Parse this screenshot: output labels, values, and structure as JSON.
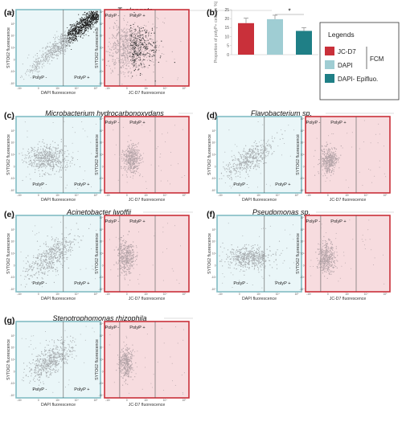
{
  "figure": {
    "colors": {
      "dapi_frame": "#82bcc4",
      "dapi_fill": "#eaf6f8",
      "jc_frame": "#c9303a",
      "jc_fill": "#f7dcdf",
      "dot": "#a8adb0",
      "dot_dense": "#1a1a1a",
      "dot_jc": "#b4a4a8"
    },
    "gates": {
      "left": "PolyP -",
      "right": "PolyP +"
    },
    "axes": {
      "y": "SYTO62 fluorescence",
      "x_dapi": "DAPI fluorescence",
      "x_jc": "JC-D7 fluorescence"
    },
    "ticks": {
      "y": [
        "10⁶",
        "10⁵",
        "10⁴",
        "10³",
        "0",
        "-10³",
        "-10⁴"
      ],
      "x": [
        "-10³",
        "0",
        "10³",
        "10⁴",
        "10⁵"
      ]
    },
    "panels": [
      {
        "letter": "(a)",
        "title": "T. elongata"
      },
      {
        "letter": "(c)",
        "title": "Microbacterium hydrocarbonoxydans"
      },
      {
        "letter": "(d)",
        "title": "Flavobacterium sp."
      },
      {
        "letter": "(e)",
        "title": "Acinetobacter lwoffii"
      },
      {
        "letter": "(f)",
        "title": "Pseudomonas sp."
      },
      {
        "letter": "(g)",
        "title": "Stenotrophomonas rhizophila"
      }
    ]
  },
  "chart_data": {
    "type": "bar",
    "panel_label": "(b)",
    "ylabel": "Proportion of polyP+ cells (in %)",
    "ylim": [
      0,
      25
    ],
    "yticks": [
      0,
      5,
      10,
      15,
      20,
      25
    ],
    "categories": [
      "JC-D7",
      "DAPI",
      "DAPI- Epifluo."
    ],
    "values": [
      17.5,
      19.7,
      13.2
    ],
    "errors": [
      2.8,
      2.2,
      1.8
    ],
    "colors": [
      "#c9303a",
      "#9fcdd3",
      "#1f7f86"
    ],
    "significance": {
      "between": [
        1,
        2
      ],
      "label": "*"
    },
    "legend": {
      "title": "Legends",
      "items": [
        "JC-D7",
        "DAPI",
        "DAPI- Epifluo."
      ],
      "group_label": "FCM"
    }
  }
}
